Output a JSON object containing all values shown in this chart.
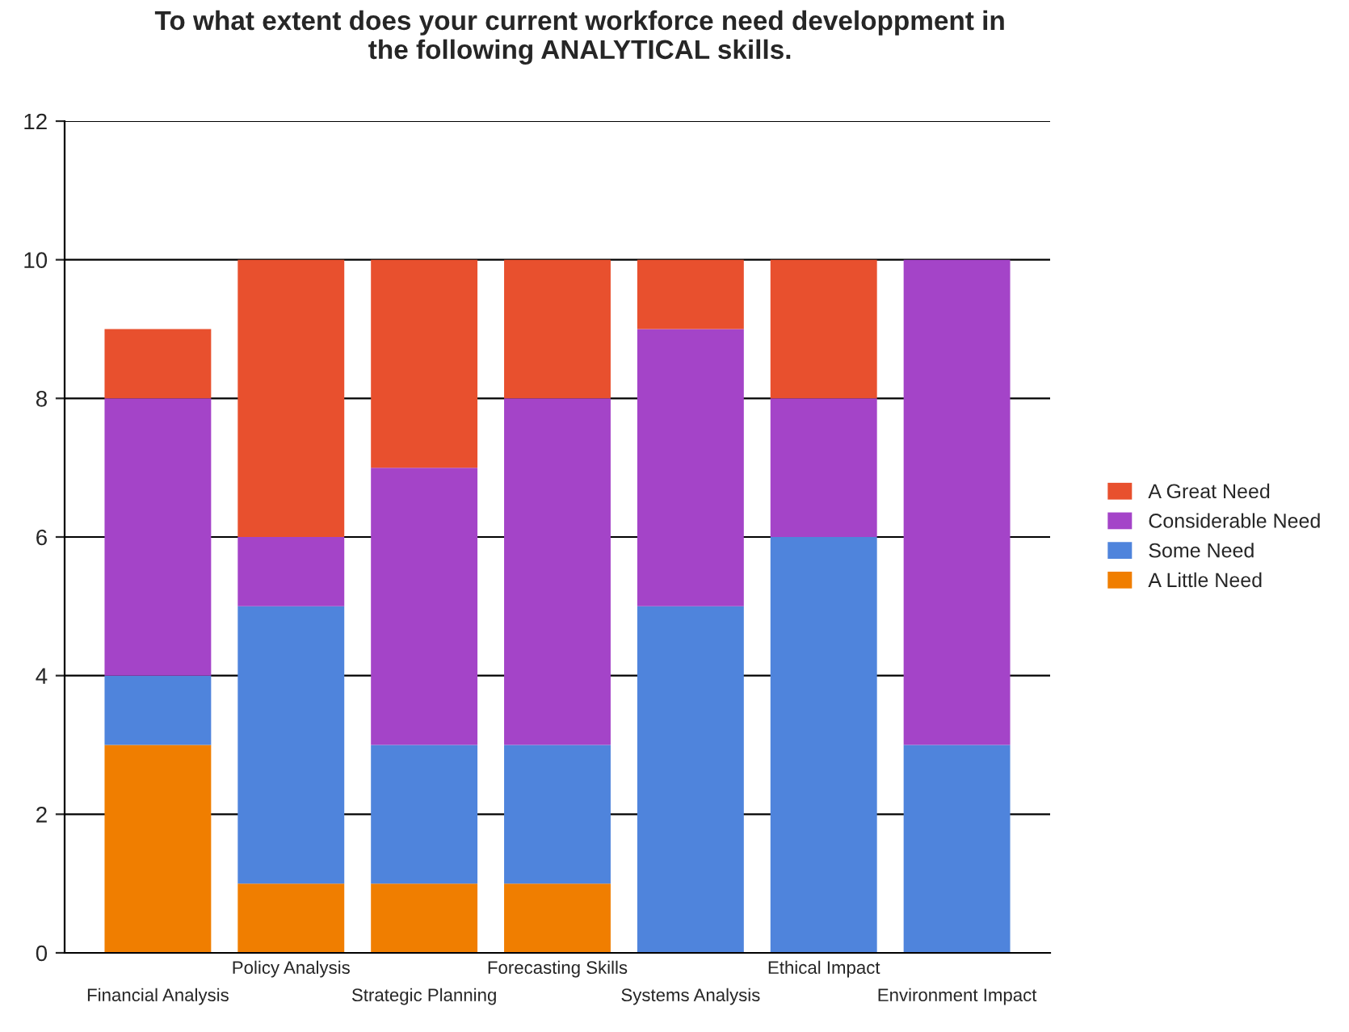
{
  "chart_data": {
    "type": "bar",
    "title": "To what extent does your current workforce need developpment in\nthe following ANALYTICAL skills.",
    "categories": [
      "Financial Analysis",
      "Policy Analysis",
      "Strategic Planning",
      "Forecasting Skills",
      "Systems Analysis",
      "Ethical Impact",
      "Environment Impact"
    ],
    "stacked": true,
    "series": [
      {
        "name": "A Little Need",
        "color": "#f07e00",
        "values": [
          3,
          1,
          1,
          1,
          0,
          0,
          0
        ]
      },
      {
        "name": "Some Need",
        "color": "#4f84dc",
        "values": [
          1,
          4,
          2,
          2,
          5,
          6,
          3
        ]
      },
      {
        "name": "Considerable Need",
        "color": "#a444c8",
        "values": [
          4,
          1,
          4,
          5,
          4,
          2,
          7
        ]
      },
      {
        "name": "A Great Need",
        "color": "#e8502e",
        "values": [
          1,
          4,
          3,
          2,
          1,
          2,
          0
        ]
      }
    ],
    "ylim": [
      0,
      12
    ],
    "yticks": [
      0,
      2,
      4,
      6,
      8,
      10,
      12
    ],
    "grid": "y",
    "legend": "right"
  }
}
